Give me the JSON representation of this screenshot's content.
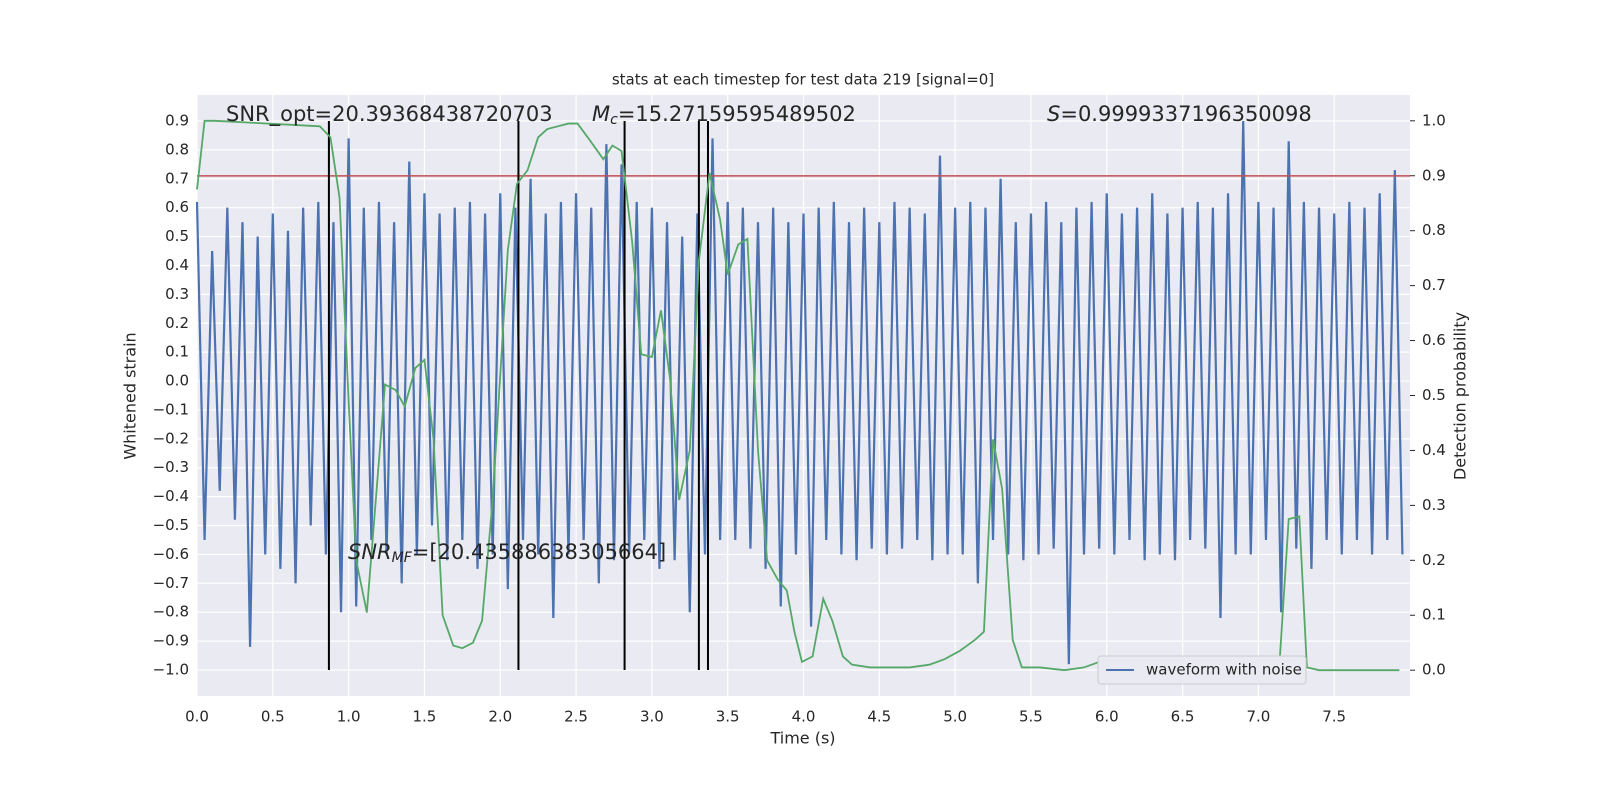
{
  "chart_data": {
    "type": "line",
    "title": "stats at each timestep for test data 219 [signal=0]",
    "x_label": "Time (s)",
    "y_label": "Whitened strain",
    "y2_label": "Detection probability",
    "grid": true,
    "legend": "lower right",
    "xlim": [
      0,
      8.0
    ],
    "ylim": [
      -1.09,
      0.99
    ],
    "y2lim": [
      -0.047,
      1.047
    ],
    "xticks": [
      {
        "value": 0,
        "label": "0.0"
      },
      {
        "value": 0.5,
        "label": "0.5"
      },
      {
        "value": 1,
        "label": "1.0"
      },
      {
        "value": 1.5,
        "label": "1.5"
      },
      {
        "value": 2,
        "label": "2.0"
      },
      {
        "value": 2.5,
        "label": "2.5"
      },
      {
        "value": 3,
        "label": "3.0"
      },
      {
        "value": 3.5,
        "label": "3.5"
      },
      {
        "value": 4,
        "label": "4.0"
      },
      {
        "value": 4.5,
        "label": "4.5"
      },
      {
        "value": 5,
        "label": "5.0"
      },
      {
        "value": 5.5,
        "label": "5.5"
      },
      {
        "value": 6,
        "label": "6.0"
      },
      {
        "value": 6.5,
        "label": "6.5"
      },
      {
        "value": 7,
        "label": "7.0"
      },
      {
        "value": 7.5,
        "label": "7.5"
      }
    ],
    "yticks": [
      {
        "value": -1.0,
        "label": "−1.0"
      },
      {
        "value": -0.9,
        "label": "−0.9"
      },
      {
        "value": -0.8,
        "label": "−0.8"
      },
      {
        "value": -0.7,
        "label": "−0.7"
      },
      {
        "value": -0.6,
        "label": "−0.6"
      },
      {
        "value": -0.5,
        "label": "−0.5"
      },
      {
        "value": -0.4,
        "label": "−0.4"
      },
      {
        "value": -0.3,
        "label": "−0.3"
      },
      {
        "value": -0.2,
        "label": "−0.2"
      },
      {
        "value": -0.1,
        "label": "−0.1"
      },
      {
        "value": 0,
        "label": "0.0"
      },
      {
        "value": 0.1,
        "label": "0.1"
      },
      {
        "value": 0.2,
        "label": "0.2"
      },
      {
        "value": 0.3,
        "label": "0.3"
      },
      {
        "value": 0.4,
        "label": "0.4"
      },
      {
        "value": 0.5,
        "label": "0.5"
      },
      {
        "value": 0.6,
        "label": "0.6"
      },
      {
        "value": 0.7,
        "label": "0.7"
      },
      {
        "value": 0.8,
        "label": "0.8"
      },
      {
        "value": 0.9,
        "label": "0.9"
      }
    ],
    "y2ticks": [
      {
        "value": 0,
        "label": "0.0"
      },
      {
        "value": 0.1,
        "label": "0.1"
      },
      {
        "value": 0.2,
        "label": "0.2"
      },
      {
        "value": 0.3,
        "label": "0.3"
      },
      {
        "value": 0.4,
        "label": "0.4"
      },
      {
        "value": 0.5,
        "label": "0.5"
      },
      {
        "value": 0.6,
        "label": "0.6"
      },
      {
        "value": 0.7,
        "label": "0.7"
      },
      {
        "value": 0.8,
        "label": "0.8"
      },
      {
        "value": 0.9,
        "label": "0.9"
      },
      {
        "value": 1,
        "label": "1.0"
      }
    ],
    "series": [
      {
        "name": "waveform with noise",
        "color": "#4c72b0",
        "axis": "y",
        "x": [
          0,
          0.05,
          0.1,
          0.15,
          0.2,
          0.25,
          0.3,
          0.35,
          0.4,
          0.45,
          0.5,
          0.55,
          0.6,
          0.65,
          0.7,
          0.75,
          0.8,
          0.85,
          0.9,
          0.95,
          1,
          1.05,
          1.1,
          1.15,
          1.2,
          1.25,
          1.3,
          1.35,
          1.4,
          1.45,
          1.5,
          1.55,
          1.6,
          1.65,
          1.7,
          1.75,
          1.8,
          1.85,
          1.9,
          1.95,
          2,
          2.05,
          2.1,
          2.15,
          2.2,
          2.25,
          2.3,
          2.35,
          2.4,
          2.45,
          2.5,
          2.55,
          2.6,
          2.65,
          2.7,
          2.75,
          2.8,
          2.85,
          2.9,
          2.95,
          3,
          3.05,
          3.1,
          3.15,
          3.2,
          3.25,
          3.3,
          3.35,
          3.4,
          3.45,
          3.5,
          3.55,
          3.6,
          3.65,
          3.7,
          3.75,
          3.8,
          3.85,
          3.9,
          3.95,
          4,
          4.05,
          4.1,
          4.15,
          4.2,
          4.25,
          4.3,
          4.35,
          4.4,
          4.45,
          4.5,
          4.55,
          4.6,
          4.65,
          4.7,
          4.75,
          4.8,
          4.85,
          4.9,
          4.95,
          5,
          5.05,
          5.1,
          5.15,
          5.2,
          5.25,
          5.3,
          5.35,
          5.4,
          5.45,
          5.5,
          5.55,
          5.6,
          5.65,
          5.7,
          5.75,
          5.8,
          5.85,
          5.9,
          5.95,
          6,
          6.05,
          6.1,
          6.15,
          6.2,
          6.25,
          6.3,
          6.35,
          6.4,
          6.45,
          6.5,
          6.55,
          6.6,
          6.65,
          6.7,
          6.75,
          6.8,
          6.85,
          6.9,
          6.95,
          7,
          7.05,
          7.1,
          7.15,
          7.2,
          7.25,
          7.3,
          7.35,
          7.4,
          7.45,
          7.5,
          7.55,
          7.6,
          7.65,
          7.7,
          7.75,
          7.8,
          7.85,
          7.9,
          7.95
        ],
        "values": [
          0.62,
          -0.55,
          0.45,
          -0.38,
          0.6,
          -0.48,
          0.55,
          -0.92,
          0.5,
          -0.6,
          0.58,
          -0.65,
          0.52,
          -0.7,
          0.6,
          -0.5,
          0.62,
          -0.6,
          0.55,
          -0.8,
          0.84,
          -0.78,
          0.6,
          -0.55,
          0.62,
          -0.6,
          0.55,
          -0.7,
          0.76,
          -0.6,
          0.65,
          -0.5,
          0.58,
          -0.62,
          0.6,
          -0.55,
          0.62,
          -0.65,
          0.58,
          -0.6,
          0.65,
          -0.72,
          0.6,
          -0.55,
          0.7,
          -0.6,
          0.58,
          -0.82,
          0.62,
          -0.6,
          0.65,
          -0.55,
          0.6,
          -0.7,
          0.82,
          -0.62,
          0.75,
          -0.6,
          0.62,
          -0.55,
          0.6,
          -0.65,
          0.55,
          -0.62,
          0.5,
          -0.8,
          0.58,
          -0.6,
          0.84,
          -0.55,
          0.62,
          -0.55,
          0.6,
          -0.58,
          0.55,
          -0.65,
          0.6,
          -0.78,
          0.55,
          -0.6,
          0.58,
          -0.85,
          0.6,
          -0.55,
          0.62,
          -0.6,
          0.55,
          -0.62,
          0.6,
          -0.58,
          0.55,
          -0.6,
          0.62,
          -0.58,
          0.6,
          -0.55,
          0.58,
          -0.62,
          0.78,
          -0.6,
          0.6,
          -0.6,
          0.62,
          -0.7,
          0.6,
          -0.55,
          0.7,
          -0.6,
          0.55,
          -0.62,
          0.58,
          -0.6,
          0.62,
          -0.58,
          0.55,
          -0.98,
          0.6,
          -0.6,
          0.62,
          -0.58,
          0.65,
          -0.6,
          0.58,
          -0.55,
          0.6,
          -0.62,
          0.65,
          -0.6,
          0.58,
          -0.62,
          0.6,
          -0.55,
          0.62,
          -0.58,
          0.6,
          -0.82,
          0.65,
          -0.6,
          0.9,
          -0.6,
          0.62,
          -0.55,
          0.6,
          -0.8,
          0.83,
          -0.58,
          0.62,
          -0.65,
          0.6,
          -0.55,
          0.58,
          -0.6,
          0.62,
          -0.55,
          0.6,
          -0.6,
          0.65,
          -0.55,
          0.73,
          -0.6
        ]
      },
      {
        "color": "#55a868",
        "axis": "y2",
        "x": [
          0,
          0.05,
          0.12,
          0.81,
          0.88,
          0.94,
          1.0,
          1.05,
          1.12,
          1.24,
          1.31,
          1.37,
          1.44,
          1.5,
          1.56,
          1.62,
          1.69,
          1.75,
          1.82,
          1.88,
          1.95,
          2.05,
          2.11,
          2.18,
          2.25,
          2.31,
          2.38,
          2.45,
          2.51,
          2.59,
          2.68,
          2.74,
          2.8,
          2.87,
          2.93,
          3.0,
          3.06,
          3.12,
          3.18,
          3.25,
          3.31,
          3.38,
          3.45,
          3.5,
          3.57,
          3.63,
          3.7,
          3.76,
          3.83,
          3.89,
          3.94,
          3.99,
          4.06,
          4.13,
          4.19,
          4.26,
          4.32,
          4.44,
          4.57,
          4.7,
          4.83,
          4.93,
          5.03,
          5.13,
          5.19,
          5.25,
          5.31,
          5.38,
          5.44,
          5.56,
          5.72,
          5.85,
          5.95,
          6.02,
          6.15,
          6.28,
          6.61,
          6.81,
          6.91,
          7.0,
          7.07,
          7.14,
          7.2,
          7.27,
          7.32,
          7.4,
          7.93
        ],
        "values": [
          0.875,
          1.0,
          1.0,
          0.99,
          0.97,
          0.86,
          0.49,
          0.2,
          0.105,
          0.52,
          0.51,
          0.48,
          0.55,
          0.565,
          0.42,
          0.1,
          0.045,
          0.04,
          0.05,
          0.09,
          0.31,
          0.765,
          0.885,
          0.91,
          0.97,
          0.985,
          0.99,
          0.995,
          0.995,
          0.965,
          0.93,
          0.955,
          0.945,
          0.78,
          0.575,
          0.57,
          0.655,
          0.53,
          0.31,
          0.4,
          0.745,
          0.905,
          0.82,
          0.72,
          0.775,
          0.785,
          0.4,
          0.2,
          0.165,
          0.145,
          0.07,
          0.015,
          0.025,
          0.13,
          0.09,
          0.025,
          0.01,
          0.005,
          0.005,
          0.005,
          0.01,
          0.02,
          0.035,
          0.055,
          0.07,
          0.42,
          0.33,
          0.055,
          0.005,
          0.005,
          0.0,
          0.005,
          0.015,
          0.005,
          0.01,
          0.005,
          0.005,
          0.005,
          0.02,
          0.025,
          0.01,
          0.015,
          0.275,
          0.28,
          0.005,
          0.0,
          0.0
        ]
      }
    ],
    "hline": {
      "value": 0.71,
      "color": "#c44e52"
    },
    "vlines": {
      "x": [
        0.87,
        2.12,
        2.82,
        3.31,
        3.37
      ],
      "ymin": -1.0,
      "ymax": 0.9,
      "color": "#000000"
    },
    "annotations": {
      "snr_opt": "SNR_opt=20.39368438720703",
      "mc": {
        "symbol": "M",
        "subscript": "c",
        "text": "=15.27159595489502"
      },
      "s": {
        "symbol": "S",
        "text": "=0.9999337196350098"
      },
      "snr_mf": {
        "symbol": "SNR",
        "subscript": "MF",
        "text": "=[20.43588638305664]"
      }
    }
  }
}
